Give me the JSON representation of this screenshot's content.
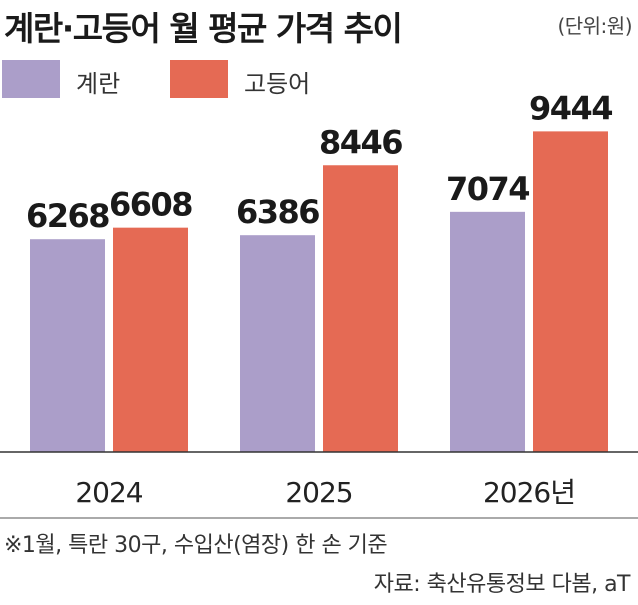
{
  "title": "계란·고등어 월 평균 가격 추이",
  "unit": "(단위:원)",
  "legend": [
    {
      "label": "계란",
      "color": "#ab9ec9"
    },
    {
      "label": "고등어",
      "color": "#e56a54"
    }
  ],
  "chart_data": {
    "type": "bar",
    "categories": [
      "2024",
      "2025",
      "2026년"
    ],
    "series": [
      {
        "name": "계란",
        "values": [
          6268,
          6386,
          7074
        ],
        "color": "#ab9ec9"
      },
      {
        "name": "고등어",
        "values": [
          6608,
          8446,
          9444
        ],
        "color": "#e56a54"
      }
    ],
    "ylim": [
      0,
      10000
    ],
    "grid": false,
    "legend_position": "top-left"
  },
  "footnote": "※1월, 특란 30구, 수입산(염장) 한 손 기준",
  "source": "자료: 축산유통정보 다봄, aT"
}
